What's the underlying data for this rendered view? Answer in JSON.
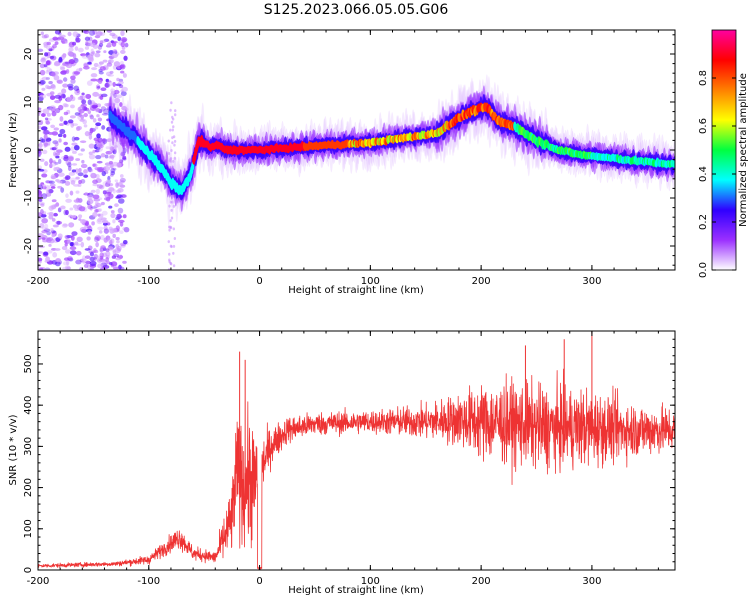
{
  "figure": {
    "title": "S125.2023.066.05.05.G06"
  },
  "chart_data": [
    {
      "type": "heatmap",
      "xlabel": "Height of straight line (km)",
      "ylabel": "Frequency (Hz)",
      "xlim": [
        -200,
        375
      ],
      "ylim": [
        -25,
        25
      ],
      "xticks": [
        -200,
        -100,
        0,
        100,
        200,
        300
      ],
      "yticks": [
        -20,
        -10,
        0,
        10,
        20
      ],
      "colorbar": {
        "label": "Normalized spectral amplitude",
        "range": [
          0,
          1
        ],
        "ticks": [
          "0.0",
          "0.2",
          "0.4",
          "0.6",
          "0.8"
        ],
        "colormap": [
          "#ffffff",
          "#9b30ff",
          "#2f00ff",
          "#00ffff",
          "#00ff40",
          "#ffff00",
          "#ff8000",
          "#ff0000",
          "#ff00a0"
        ]
      },
      "ridge": {
        "x": [
          -135,
          -125,
          -110,
          -95,
          -85,
          -80,
          -70,
          -62,
          -55,
          -50,
          -45,
          -38,
          -30,
          -20,
          0,
          30,
          60,
          100,
          130,
          160,
          175,
          190,
          205,
          215,
          230,
          250,
          270,
          290,
          310,
          330,
          350,
          375
        ],
        "y": [
          7,
          5,
          2,
          -2,
          -5,
          -7,
          -8.5,
          -5,
          2,
          1.5,
          0.5,
          1,
          0,
          0,
          0,
          0.5,
          1,
          1.5,
          2.5,
          3.5,
          6,
          8,
          9,
          6,
          5,
          2,
          0,
          -1,
          -1.5,
          -2,
          -2.5,
          -3
        ]
      },
      "noise_region_x": [
        -200,
        -120
      ]
    },
    {
      "type": "line",
      "xlabel": "Height of straight line (km)",
      "ylabel": "SNR (10 * v/v)",
      "xlim": [
        -200,
        375
      ],
      "ylim": [
        0,
        580
      ],
      "xticks": [
        -200,
        -100,
        0,
        100,
        200,
        300
      ],
      "yticks": [
        0,
        100,
        200,
        300,
        400,
        500
      ],
      "color": "#ee3333",
      "envelope": {
        "x": [
          -200,
          -130,
          -100,
          -85,
          -72,
          -60,
          -40,
          -25,
          -20,
          -15,
          -10,
          -5,
          0,
          10,
          25,
          50,
          100,
          150,
          180,
          200,
          230,
          260,
          300,
          340,
          375
        ],
        "mean": [
          10,
          15,
          25,
          55,
          80,
          40,
          30,
          120,
          250,
          200,
          220,
          210,
          240,
          300,
          340,
          355,
          360,
          360,
          365,
          360,
          355,
          345,
          345,
          340,
          340
        ],
        "spread": [
          5,
          6,
          12,
          20,
          30,
          18,
          15,
          100,
          150,
          150,
          170,
          160,
          80,
          50,
          35,
          30,
          30,
          45,
          70,
          100,
          110,
          110,
          100,
          70,
          60
        ]
      },
      "spikes": [
        {
          "x": -18,
          "y": 530
        },
        {
          "x": -13,
          "y": 510
        },
        {
          "x": 240,
          "y": 545
        },
        {
          "x": 275,
          "y": 560
        },
        {
          "x": 300,
          "y": 580
        }
      ]
    }
  ]
}
